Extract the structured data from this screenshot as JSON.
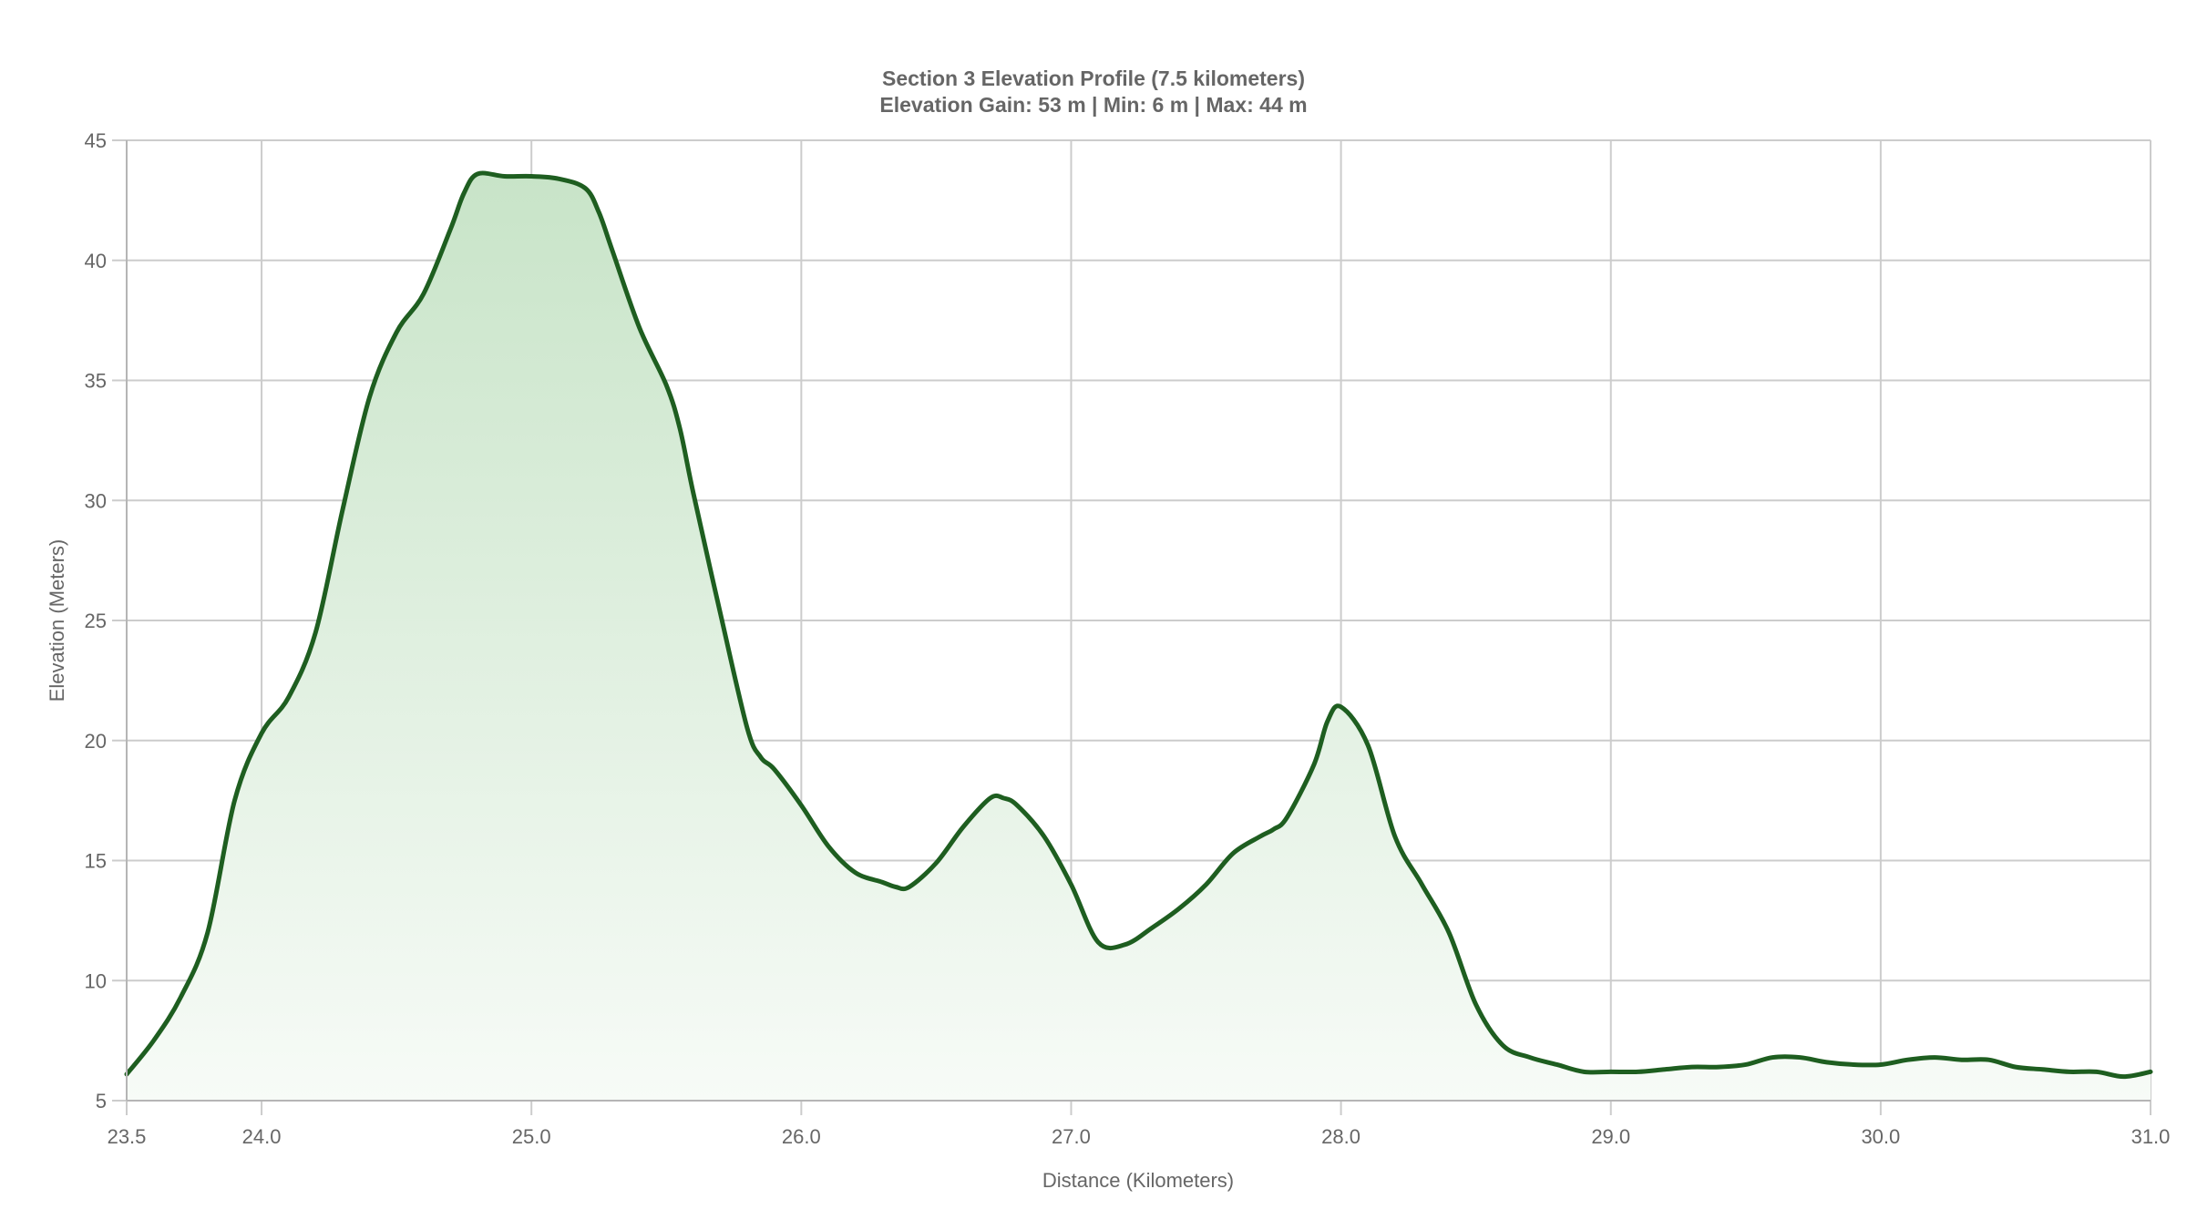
{
  "title": {
    "line1": "Section 3 Elevation Profile (7.5 kilometers)",
    "line2": "Elevation Gain: 53 m | Min: 6 m | Max: 44 m"
  },
  "colors": {
    "line": "#1e5e20",
    "fill_top": "#c8e4c8",
    "fill_bottom": "#f7fbf7",
    "grid": "#cccccc",
    "text": "#666666"
  },
  "chart_data": {
    "type": "area",
    "title": "Section 3 Elevation Profile (7.5 kilometers)",
    "subtitle": "Elevation Gain: 53 m | Min: 6 m | Max: 44 m",
    "xlabel": "Distance (Kilometers)",
    "ylabel": "Elevation (Meters)",
    "xlim": [
      23.5,
      31.0
    ],
    "ylim": [
      5,
      45
    ],
    "x_ticks": [
      "23.5",
      "24.0",
      "25.0",
      "26.0",
      "27.0",
      "28.0",
      "29.0",
      "30.0",
      "31.0"
    ],
    "y_ticks": [
      "5",
      "10",
      "15",
      "20",
      "25",
      "30",
      "35",
      "40",
      "45"
    ],
    "grid": true,
    "legend": null,
    "x": [
      23.5,
      23.6,
      23.7,
      23.8,
      23.9,
      24.0,
      24.1,
      24.2,
      24.3,
      24.4,
      24.5,
      24.6,
      24.7,
      24.75,
      24.8,
      24.9,
      25.0,
      25.1,
      25.2,
      25.25,
      25.3,
      25.4,
      25.5,
      25.55,
      25.6,
      25.7,
      25.8,
      25.85,
      25.9,
      26.0,
      26.1,
      26.2,
      26.3,
      26.35,
      26.4,
      26.5,
      26.6,
      26.7,
      26.75,
      26.8,
      26.9,
      27.0,
      27.1,
      27.2,
      27.3,
      27.4,
      27.5,
      27.6,
      27.7,
      27.75,
      27.8,
      27.9,
      27.95,
      28.0,
      28.1,
      28.2,
      28.3,
      28.4,
      28.5,
      28.6,
      28.7,
      28.8,
      28.9,
      29.0,
      29.1,
      29.2,
      29.3,
      29.4,
      29.5,
      29.6,
      29.7,
      29.8,
      29.9,
      30.0,
      30.1,
      30.2,
      30.3,
      30.4,
      30.5,
      30.6,
      30.7,
      30.8,
      30.9,
      31.0
    ],
    "values": [
      6.1,
      7.5,
      9.3,
      12.0,
      17.5,
      20.3,
      21.8,
      24.5,
      29.6,
      34.3,
      37.0,
      38.6,
      41.3,
      42.8,
      43.6,
      43.5,
      43.5,
      43.4,
      43.0,
      42.0,
      40.4,
      37.2,
      34.8,
      33.0,
      30.3,
      25.3,
      20.5,
      19.3,
      18.8,
      17.3,
      15.6,
      14.5,
      14.1,
      13.9,
      13.9,
      14.9,
      16.4,
      17.6,
      17.6,
      17.3,
      16.0,
      14.0,
      11.6,
      11.5,
      12.2,
      13.0,
      14.0,
      15.3,
      16.0,
      16.3,
      16.8,
      19.0,
      20.8,
      21.4,
      19.8,
      16.0,
      14.0,
      12.0,
      9.0,
      7.3,
      6.8,
      6.5,
      6.2,
      6.2,
      6.2,
      6.3,
      6.4,
      6.4,
      6.5,
      6.8,
      6.8,
      6.6,
      6.5,
      6.5,
      6.7,
      6.8,
      6.7,
      6.7,
      6.4,
      6.3,
      6.2,
      6.2,
      6.0,
      6.2
    ]
  }
}
